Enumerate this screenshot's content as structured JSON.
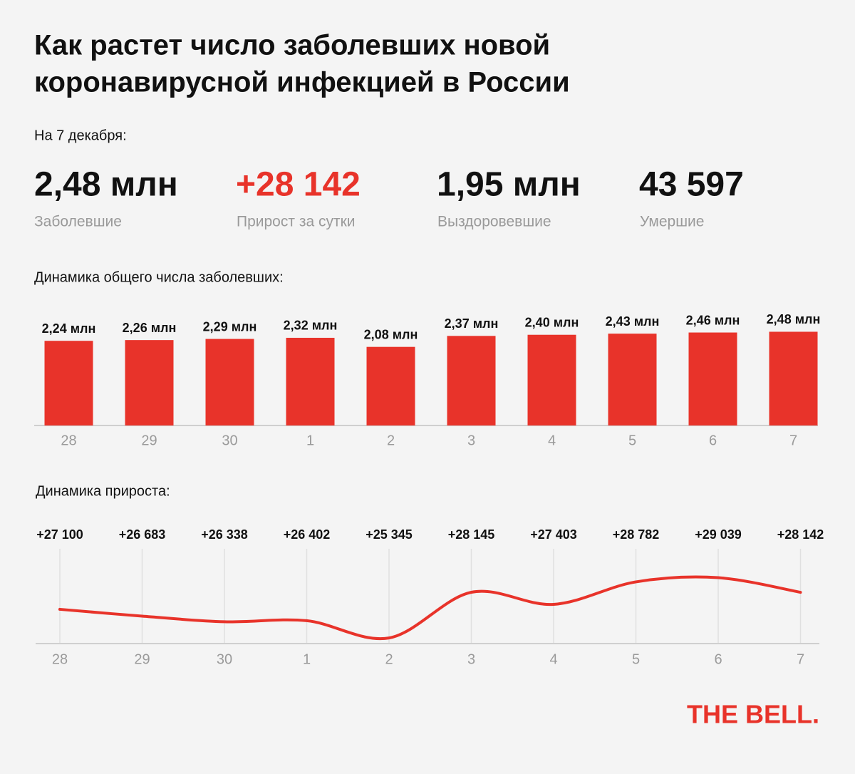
{
  "header": {
    "title_lines": [
      "Как растет число заболевших новой",
      "коронавирусной инфекцией в России"
    ],
    "date": "На 7 декабря:"
  },
  "stats": [
    {
      "value": "2,48 млн",
      "label": "Заболевшие"
    },
    {
      "value": "+28 142",
      "label": "Прирост за сутки"
    },
    {
      "value": "1,95 млн",
      "label": "Выздоровевшие"
    },
    {
      "value": "43 597",
      "label": "Умершие"
    }
  ],
  "chart_data": [
    {
      "type": "bar",
      "title": "Динамика общего числа заболевших:",
      "categories": [
        "28",
        "29",
        "30",
        "1",
        "2",
        "3",
        "4",
        "5",
        "6",
        "7"
      ],
      "values": [
        2.24,
        2.26,
        2.29,
        2.32,
        2.08,
        2.37,
        2.4,
        2.43,
        2.46,
        2.48
      ],
      "value_labels": [
        "2,24 млн",
        "2,26 млн",
        "2,29 млн",
        "2,32 млн",
        "2,08 млн",
        "2,37 млн",
        "2,40 млн",
        "2,43 млн",
        "2,46 млн",
        "2,48 млн"
      ],
      "color": "#e8332a",
      "ylim": [
        0,
        3.3
      ]
    },
    {
      "type": "line",
      "title": "Динамика прироста:",
      "categories": [
        "28",
        "29",
        "30",
        "1",
        "2",
        "3",
        "4",
        "5",
        "6",
        "7"
      ],
      "values": [
        27100,
        26683,
        26338,
        26402,
        25345,
        28145,
        27403,
        28782,
        29039,
        28142
      ],
      "value_labels": [
        "+27 100",
        "+26 683",
        "+26 338",
        "+26 402",
        "+25 345",
        "+28 145",
        "+27 403",
        "+28 782",
        "+29 039",
        "+28 142"
      ],
      "color": "#e8332a",
      "ylim": [
        25000,
        29500
      ],
      "grid": true
    }
  ],
  "logo": "THE BELL."
}
